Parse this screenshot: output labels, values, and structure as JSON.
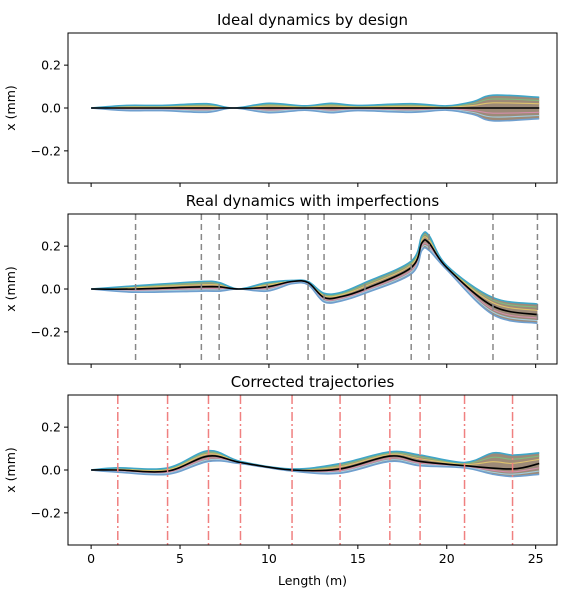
{
  "chart_data": [
    {
      "type": "line",
      "title": "Ideal dynamics by design",
      "ylabel": "x (mm)",
      "xlabel": "",
      "xlim": [
        -1.3,
        26.2
      ],
      "ylim": [
        -0.35,
        0.35
      ],
      "yticks": [
        -0.2,
        0.0,
        0.2
      ],
      "xticks": [
        0,
        5,
        10,
        15,
        20,
        25
      ],
      "show_xtick_labels": false,
      "mean": {
        "x": [
          0,
          25.2
        ],
        "y": [
          0.0,
          0.0
        ]
      },
      "band": {
        "x": [
          0,
          2,
          4,
          6.5,
          8,
          10,
          12,
          13.5,
          15,
          18,
          20,
          21.5,
          22.6,
          25.2
        ],
        "upper": [
          0.0,
          0.012,
          0.012,
          0.02,
          0.0,
          0.022,
          0.01,
          0.022,
          0.012,
          0.02,
          0.01,
          0.03,
          0.06,
          0.05
        ],
        "lower": [
          0.0,
          -0.012,
          -0.012,
          -0.02,
          0.0,
          -0.022,
          -0.01,
          -0.022,
          -0.012,
          -0.02,
          -0.01,
          -0.03,
          -0.06,
          -0.05
        ]
      },
      "vlines": [],
      "vline_style": "none"
    },
    {
      "type": "line",
      "title": "Real dynamics with imperfections",
      "ylabel": "x (mm)",
      "xlabel": "",
      "xlim": [
        -1.3,
        26.2
      ],
      "ylim": [
        -0.35,
        0.35
      ],
      "yticks": [
        -0.2,
        0.0,
        0.2
      ],
      "xticks": [
        0,
        5,
        10,
        15,
        20,
        25
      ],
      "show_xtick_labels": false,
      "mean": {
        "x": [
          0,
          2.5,
          6.2,
          7.2,
          8.3,
          9.9,
          11.3,
          12.2,
          13.1,
          14.1,
          15.4,
          18.0,
          18.6,
          19.0,
          20.0,
          22.6,
          25.1
        ],
        "y": [
          0.0,
          0.0,
          0.01,
          0.01,
          0.0,
          0.01,
          0.035,
          0.03,
          -0.04,
          -0.035,
          0.0,
          0.1,
          0.215,
          0.215,
          0.1,
          -0.08,
          -0.12
        ]
      },
      "band": {
        "x": [
          0,
          2.5,
          6.2,
          7.2,
          8.3,
          9.9,
          11.3,
          12.2,
          13.1,
          14.1,
          15.4,
          18.0,
          18.6,
          19.0,
          20.0,
          22.6,
          25.1
        ],
        "upper": [
          0.0,
          0.015,
          0.035,
          0.03,
          0.0,
          0.03,
          0.04,
          0.035,
          -0.02,
          -0.015,
          0.03,
          0.13,
          0.25,
          0.25,
          0.11,
          -0.04,
          -0.07
        ],
        "lower": [
          0.0,
          -0.015,
          -0.01,
          -0.01,
          0.0,
          -0.01,
          0.025,
          0.02,
          -0.06,
          -0.055,
          -0.02,
          0.07,
          0.18,
          0.18,
          0.09,
          -0.12,
          -0.16
        ]
      },
      "vlines": [
        2.5,
        6.2,
        7.2,
        9.9,
        12.2,
        13.1,
        15.4,
        18.0,
        19.0,
        22.6,
        25.1
      ],
      "vline_style": "dashed-gray"
    },
    {
      "type": "line",
      "title": "Corrected trajectories",
      "ylabel": "x (mm)",
      "xlabel": "Length (m)",
      "xlim": [
        -1.3,
        26.2
      ],
      "ylim": [
        -0.35,
        0.35
      ],
      "yticks": [
        -0.2,
        0.0,
        0.2
      ],
      "xticks": [
        0,
        5,
        10,
        15,
        20,
        25
      ],
      "show_xtick_labels": true,
      "mean": {
        "x": [
          0,
          1.5,
          4.3,
          6.6,
          8.4,
          11.3,
          14.0,
          16.8,
          18.5,
          21.0,
          23.7,
          25.2
        ],
        "y": [
          0.0,
          0.0,
          -0.005,
          0.065,
          0.035,
          0.0,
          0.005,
          0.065,
          0.04,
          0.02,
          0.005,
          0.03
        ]
      },
      "band": {
        "x": [
          0,
          1.5,
          4.3,
          6.6,
          8.4,
          11.3,
          14.0,
          16.8,
          18.5,
          21.0,
          22.6,
          23.7,
          25.2
        ],
        "upper": [
          0.0,
          0.01,
          0.01,
          0.09,
          0.04,
          0.005,
          0.03,
          0.085,
          0.07,
          0.035,
          0.08,
          0.07,
          0.08
        ],
        "lower": [
          0.0,
          -0.01,
          -0.02,
          0.04,
          0.03,
          -0.005,
          -0.015,
          0.04,
          0.02,
          0.01,
          -0.02,
          -0.03,
          -0.02
        ]
      },
      "vlines": [
        1.5,
        4.3,
        6.6,
        8.4,
        11.3,
        14.0,
        16.8,
        18.5,
        21.0,
        23.7
      ],
      "vline_style": "dashdot-red"
    }
  ],
  "colors": {
    "band_fill": "#8c7560",
    "mean_line": "#000000",
    "edge_top": "#3fa6c8",
    "edge_bottom": "#6f9fcf",
    "inner_lines": [
      "#7fbf7f",
      "#e6c86a",
      "#d98fb0",
      "#a3d4e8"
    ],
    "vline_gray": "#888888",
    "vline_red": "#f08080"
  }
}
